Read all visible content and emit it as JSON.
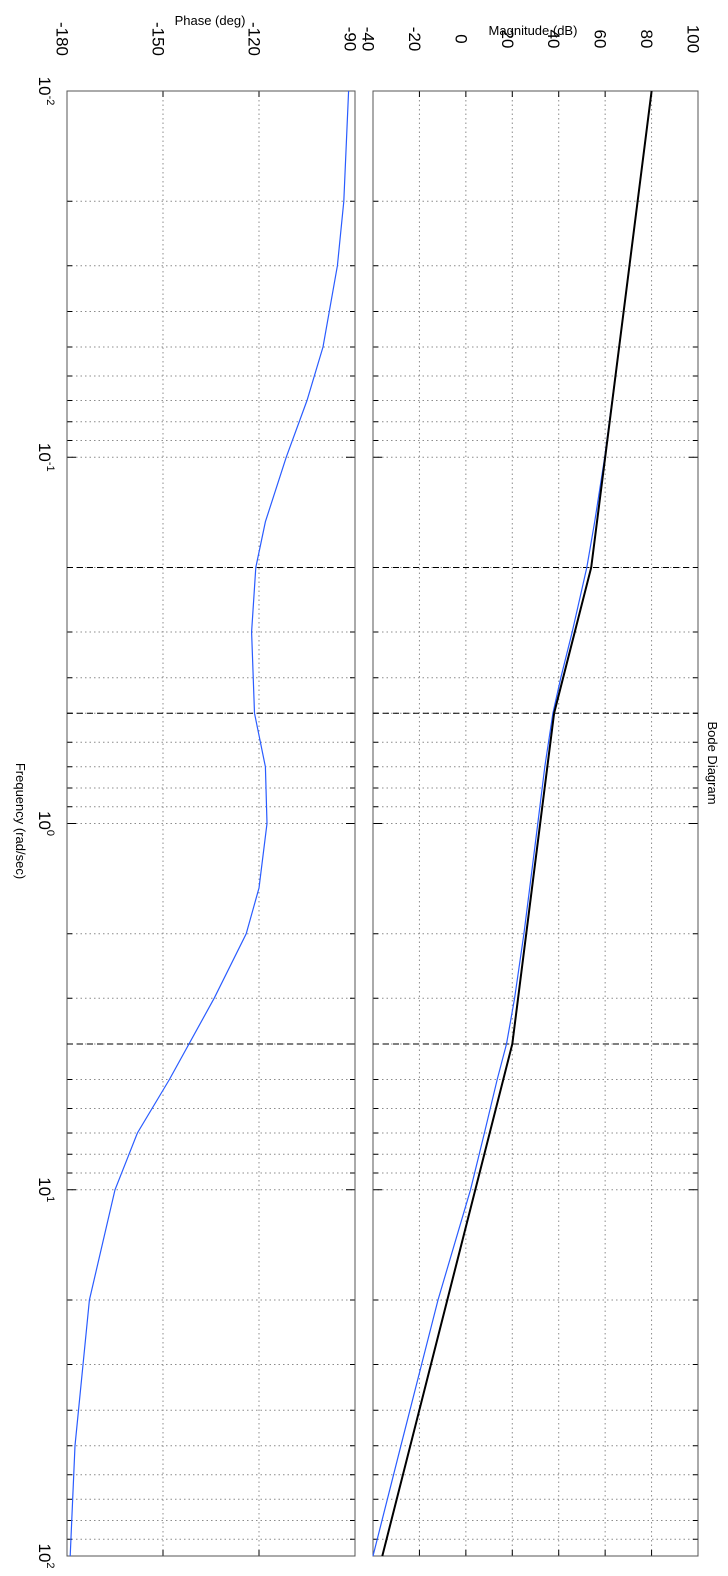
{
  "chart_data": [
    {
      "type": "line",
      "title": "Bode Diagram",
      "xlabel": "Frequency (rad/sec)",
      "ylabel": "Magnitude (dB)",
      "x_scale": "log",
      "xlim": [
        0.01,
        100
      ],
      "ylim": [
        -40,
        100
      ],
      "y_ticks": [
        -40,
        -20,
        0,
        20,
        40,
        60,
        80,
        100
      ],
      "y_tick_labels": [
        "-40",
        "-20",
        "0",
        "20",
        "40",
        "60",
        "80",
        "100"
      ],
      "x_ticks": [
        0.01,
        0.1,
        1,
        10,
        100
      ],
      "x_tick_bases": [
        "10",
        "10",
        "10",
        "10",
        "10"
      ],
      "x_tick_exponents": [
        "-2",
        "-1",
        "0",
        "1",
        "2"
      ],
      "grid": true,
      "orientation": "rotated 90 degrees clockwise",
      "colors": {
        "response": "#2a5cff",
        "asymptote": "#000000",
        "grid": "#8c8c8c"
      },
      "series": [
        {
          "style": "blue-thin",
          "x": [
            0.01,
            0.02,
            0.05,
            0.1,
            0.15,
            0.2,
            0.3,
            0.4,
            0.5,
            0.7,
            1,
            1.5,
            2,
            3,
            4,
            5,
            7,
            10,
            20,
            50,
            100
          ],
          "y": [
            80,
            74,
            66,
            59.8,
            55.5,
            52.1,
            45.8,
            40.9,
            37.5,
            34,
            31,
            27.5,
            25,
            21,
            17.5,
            13.5,
            8,
            2,
            -12,
            -28,
            -40
          ]
        },
        {
          "style": "black-asymptote",
          "x": [
            0.01,
            0.2,
            0.5,
            4,
            100
          ],
          "y": [
            80,
            54,
            38,
            20,
            -36
          ]
        }
      ],
      "breakpoint_frequencies": [
        0.2,
        0.5,
        4
      ]
    },
    {
      "type": "line",
      "title": "",
      "xlabel": "Frequency (rad/sec)",
      "ylabel": "Phase (deg)",
      "x_scale": "log",
      "xlim": [
        0.01,
        100
      ],
      "ylim": [
        -180,
        -90
      ],
      "y_ticks": [
        -180,
        -150,
        -120,
        -90
      ],
      "y_tick_labels": [
        "-180",
        "-150",
        "-120",
        "-90"
      ],
      "x_ticks": [
        0.01,
        0.1,
        1,
        10,
        100
      ],
      "x_tick_bases": [
        "10",
        "10",
        "10",
        "10",
        "10"
      ],
      "x_tick_exponents": [
        "-2",
        "-1",
        "0",
        "1",
        "2"
      ],
      "grid": true,
      "series": [
        {
          "style": "blue-thin",
          "x": [
            0.01,
            0.02,
            0.03,
            0.05,
            0.07,
            0.1,
            0.15,
            0.2,
            0.3,
            0.5,
            0.7,
            1,
            1.5,
            2,
            3,
            5,
            7,
            10,
            20,
            50,
            100
          ],
          "y": [
            -92,
            -93.5,
            -95.5,
            -100,
            -105,
            -111.5,
            -118,
            -121,
            -122.3,
            -121.4,
            -118,
            -117.5,
            -120,
            -124,
            -134,
            -148,
            -158,
            -165,
            -173,
            -177.5,
            -179
          ]
        }
      ],
      "breakpoint_frequencies": [
        0.2,
        0.5,
        4
      ]
    }
  ]
}
